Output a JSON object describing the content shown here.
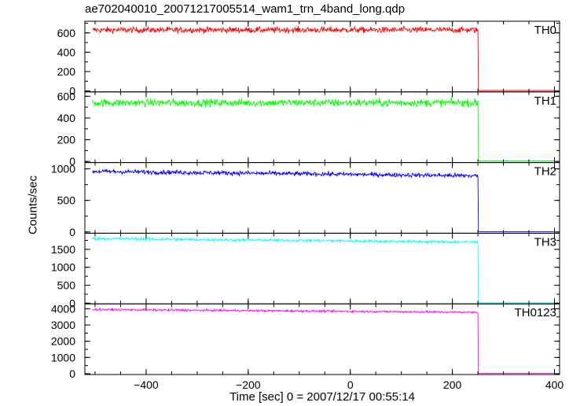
{
  "chart_data": {
    "type": "line",
    "title": "ae702040010_20071217005514_wam1_trn_4band_long.qdp",
    "xlabel": "Time [sec] 0 = 2007/12/17 00:55:14",
    "ylabel": "Counts/sec",
    "xlim": [
      -520,
      410
    ],
    "x_ticks": [
      "−400",
      "−200",
      "0",
      "200",
      "400"
    ],
    "x_tick_values": [
      -400,
      -200,
      0,
      200,
      400
    ],
    "series": [
      {
        "name": "TH0",
        "color": "#ff0000",
        "level": 630,
        "noise": 22,
        "x_end_signal": 250,
        "post_level": 5,
        "ylim": [
          -10,
          720
        ],
        "y_ticks": [
          0,
          200,
          400,
          600
        ]
      },
      {
        "name": "TH1",
        "color": "#00ff00",
        "level": 540,
        "noise": 25,
        "x_end_signal": 250,
        "post_level": 5,
        "ylim": [
          -10,
          640
        ],
        "y_ticks": [
          0,
          200,
          400,
          600
        ]
      },
      {
        "name": "TH2",
        "color": "#0000ff",
        "level_start": 960,
        "level_end": 890,
        "noise": 25,
        "x_end_signal": 250,
        "post_level": 5,
        "ylim": [
          -20,
          1100
        ],
        "y_ticks": [
          0,
          500,
          1000
        ]
      },
      {
        "name": "TH3",
        "color": "#00ffff",
        "level_start": 1800,
        "level_end": 1700,
        "noise": 30,
        "x_end_signal": 250,
        "post_level": 10,
        "ylim": [
          -20,
          1950
        ],
        "y_ticks": [
          0,
          500,
          1000,
          1500
        ]
      },
      {
        "name": "TH0123",
        "color": "#ff00ff",
        "level_start": 3950,
        "level_end": 3780,
        "noise": 45,
        "x_end_signal": 250,
        "post_level": 20,
        "ylim": [
          -50,
          4300
        ],
        "y_ticks": [
          0,
          1000,
          2000,
          3000,
          4000
        ]
      }
    ],
    "grid": false,
    "legend": "panel labels top-right"
  }
}
